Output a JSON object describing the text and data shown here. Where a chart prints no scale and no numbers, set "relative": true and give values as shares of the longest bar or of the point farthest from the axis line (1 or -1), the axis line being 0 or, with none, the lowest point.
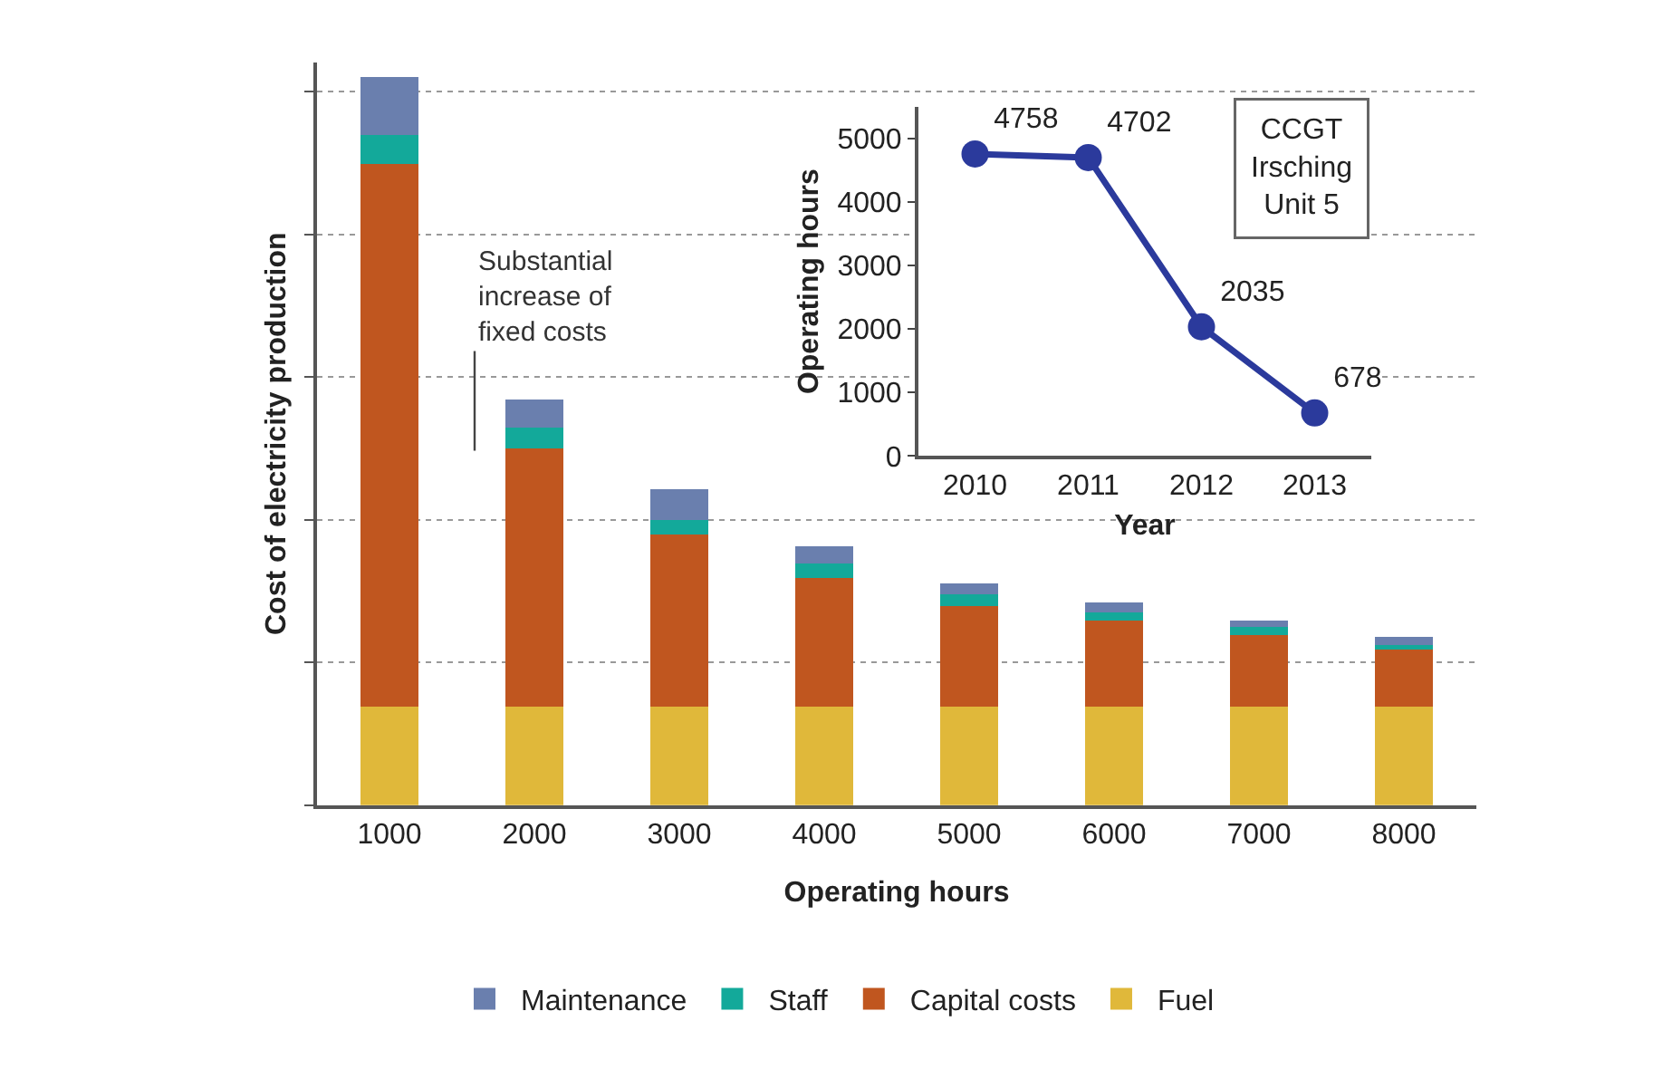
{
  "chart_data": [
    {
      "type": "bar",
      "stacked": true,
      "relative": true,
      "xlabel": "Operating hours",
      "ylabel": "Cost of electricity production",
      "categories": [
        "1000",
        "2000",
        "3000",
        "4000",
        "5000",
        "6000",
        "7000",
        "8000"
      ],
      "series": [
        {
          "name": "Fuel",
          "color": "#e0b83a",
          "values": [
            0.135,
            0.135,
            0.135,
            0.135,
            0.135,
            0.135,
            0.135,
            0.135
          ]
        },
        {
          "name": "Capital costs",
          "color": "#c0561f",
          "values": [
            0.746,
            0.355,
            0.237,
            0.177,
            0.138,
            0.118,
            0.099,
            0.079
          ]
        },
        {
          "name": "Staff",
          "color": "#13a99a",
          "values": [
            0.039,
            0.028,
            0.02,
            0.02,
            0.017,
            0.011,
            0.011,
            0.006
          ]
        },
        {
          "name": "Maintenance",
          "color": "#6a7fae",
          "values": [
            0.08,
            0.039,
            0.042,
            0.023,
            0.014,
            0.014,
            0.008,
            0.011
          ]
        }
      ],
      "annotations": [
        "Substantial\nincrease of\nfixed costs"
      ],
      "grid": "y",
      "legend": "bottom"
    },
    {
      "type": "line",
      "xlabel": "Year",
      "ylabel": "Operating hours",
      "categories": [
        "2010",
        "2011",
        "2012",
        "2013"
      ],
      "series": [
        {
          "color": "#2b3a9c",
          "values": [
            4758,
            4702,
            2035,
            678
          ]
        }
      ],
      "ylim": [
        0,
        5500
      ],
      "yticks": [
        0,
        1000,
        2000,
        3000,
        4000,
        5000
      ],
      "data_labels": true,
      "marker": "circle",
      "line_style": "solid",
      "annotations": [
        "CCGT\nIrsching\nUnit 5"
      ]
    }
  ]
}
